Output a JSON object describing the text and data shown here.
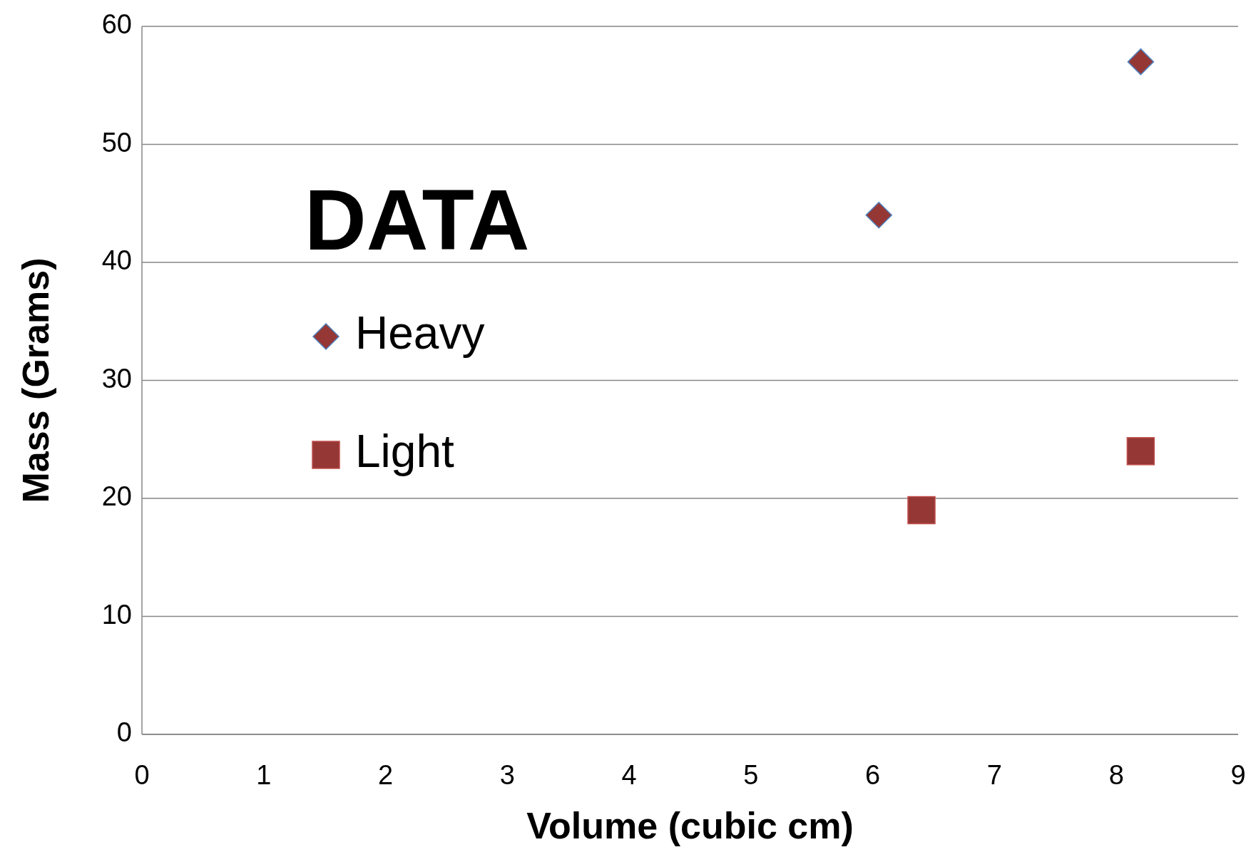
{
  "chart_data": {
    "type": "scatter",
    "title": "DATA",
    "xlabel": "Volume (cubic cm)",
    "ylabel": "Mass (Grams)",
    "xlim": [
      0,
      9
    ],
    "xticks": [
      0,
      1,
      2,
      3,
      4,
      5,
      6,
      7,
      8,
      9
    ],
    "ylim": [
      0,
      60
    ],
    "yticks": [
      0,
      10,
      20,
      30,
      40,
      50,
      60
    ],
    "grid": "y",
    "legend": "left",
    "series": [
      {
        "name": "Heavy",
        "color": "#953735",
        "marker": "diamond",
        "x": [
          6.05,
          8.2
        ],
        "values": [
          44,
          57
        ]
      },
      {
        "name": "Light",
        "color": "#953735",
        "marker": "square",
        "x": [
          6.4,
          8.2
        ],
        "values": [
          19,
          24
        ]
      }
    ]
  }
}
